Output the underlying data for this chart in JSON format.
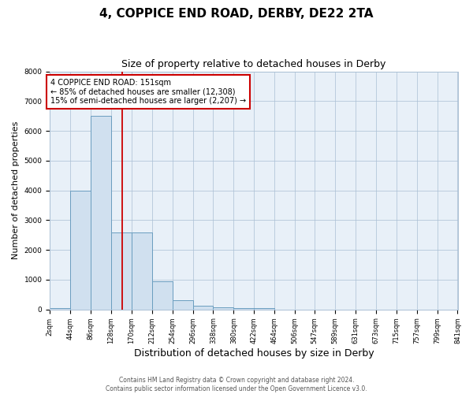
{
  "title1": "4, COPPICE END ROAD, DERBY, DE22 2TA",
  "title2": "Size of property relative to detached houses in Derby",
  "xlabel": "Distribution of detached houses by size in Derby",
  "ylabel": "Number of detached properties",
  "bin_edges": [
    2,
    44,
    86,
    128,
    170,
    212,
    254,
    296,
    338,
    380,
    422,
    464,
    506,
    547,
    589,
    631,
    673,
    715,
    757,
    799,
    841
  ],
  "bar_heights": [
    50,
    4000,
    6500,
    2600,
    2600,
    950,
    320,
    120,
    60,
    40,
    50,
    0,
    0,
    0,
    0,
    0,
    0,
    0,
    0,
    0
  ],
  "bar_color": "#d0e0ef",
  "bar_edge_color": "#6a9dbf",
  "property_size": 151,
  "red_line_color": "#cc0000",
  "ylim": [
    0,
    8000
  ],
  "annotation_text": "4 COPPICE END ROAD: 151sqm\n← 85% of detached houses are smaller (12,308)\n15% of semi-detached houses are larger (2,207) →",
  "footer_line1": "Contains HM Land Registry data © Crown copyright and database right 2024.",
  "footer_line2": "Contains public sector information licensed under the Open Government Licence v3.0.",
  "fig_facecolor": "#ffffff",
  "plot_facecolor": "#e8f0f8",
  "grid_color": "#aabfd4",
  "title1_fontsize": 11,
  "title2_fontsize": 9,
  "xlabel_fontsize": 9,
  "ylabel_fontsize": 8,
  "annotation_fontsize": 7,
  "footer_fontsize": 5.5,
  "tick_fontsize": 6
}
